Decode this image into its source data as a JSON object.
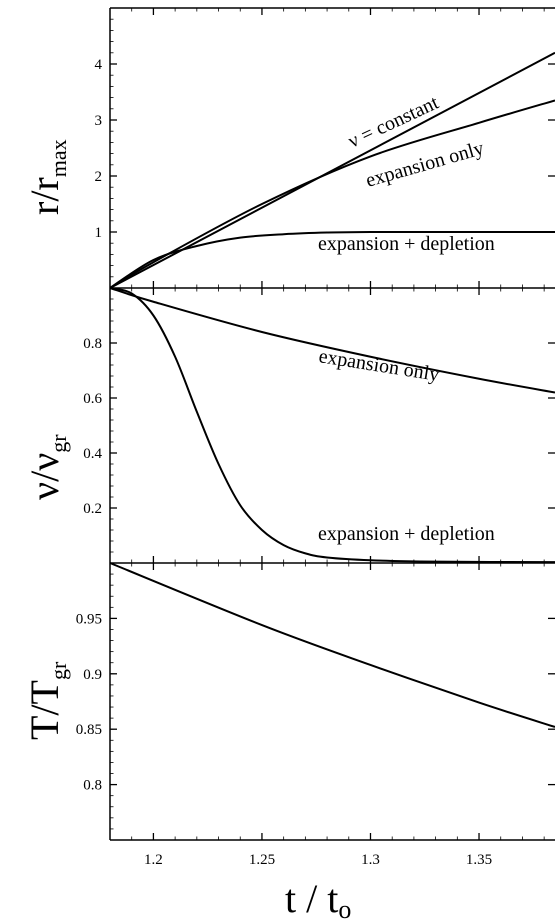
{
  "chart_data": [
    {
      "type": "line",
      "ylabel": {
        "main": "r/r",
        "sub": "max"
      },
      "xlim": [
        1.18,
        1.385
      ],
      "ylim": [
        0,
        5
      ],
      "yticks": [
        1,
        2,
        3,
        4
      ],
      "series": [
        {
          "name": "ν = constant",
          "x": [
            1.18,
            1.385
          ],
          "y": [
            0,
            4.2
          ]
        },
        {
          "name": "expansion only",
          "x": [
            1.18,
            1.2,
            1.25,
            1.3,
            1.35,
            1.385
          ],
          "y": [
            0,
            0.46,
            1.5,
            2.35,
            2.95,
            3.35
          ]
        },
        {
          "name": "expansion + depletion",
          "x": [
            1.18,
            1.2,
            1.22,
            1.24,
            1.26,
            1.28,
            1.3,
            1.35,
            1.385
          ],
          "y": [
            0,
            0.5,
            0.75,
            0.9,
            0.96,
            0.99,
            1.0,
            1.0,
            1.0
          ]
        }
      ],
      "annotations": [
        "ν = constant",
        "expansion only",
        "expansion + depletion"
      ]
    },
    {
      "type": "line",
      "ylabel": {
        "main": "ν/ν",
        "sub": "gr"
      },
      "xlim": [
        1.18,
        1.385
      ],
      "ylim": [
        0,
        1.0
      ],
      "yticks": [
        0.2,
        0.4,
        0.6,
        0.8
      ],
      "series": [
        {
          "name": "expansion only",
          "x": [
            1.18,
            1.2,
            1.25,
            1.3,
            1.35,
            1.385
          ],
          "y": [
            1.0,
            0.95,
            0.84,
            0.75,
            0.67,
            0.62
          ]
        },
        {
          "name": "expansion + depletion",
          "x": [
            1.18,
            1.19,
            1.2,
            1.21,
            1.22,
            1.23,
            1.24,
            1.25,
            1.26,
            1.27,
            1.28,
            1.3,
            1.33,
            1.385
          ],
          "y": [
            1.0,
            0.98,
            0.9,
            0.75,
            0.55,
            0.36,
            0.21,
            0.12,
            0.065,
            0.035,
            0.02,
            0.01,
            0.005,
            0.003
          ]
        }
      ],
      "annotations": [
        "expansion  only",
        "expansion + depletion"
      ]
    },
    {
      "type": "line",
      "ylabel": {
        "main": "T/T",
        "sub": "gr"
      },
      "xlabel": {
        "main": "t / t",
        "sub": "o"
      },
      "xlim": [
        1.18,
        1.385
      ],
      "ylim": [
        0.75,
        1.0
      ],
      "yticks": [
        0.8,
        0.85,
        0.9,
        0.95
      ],
      "xticks": [
        1.2,
        1.25,
        1.3,
        1.35
      ],
      "series": [
        {
          "name": "T/Tgr",
          "x": [
            1.18,
            1.25,
            1.3,
            1.35,
            1.385
          ],
          "y": [
            1.0,
            0.944,
            0.908,
            0.874,
            0.852
          ]
        }
      ]
    }
  ]
}
